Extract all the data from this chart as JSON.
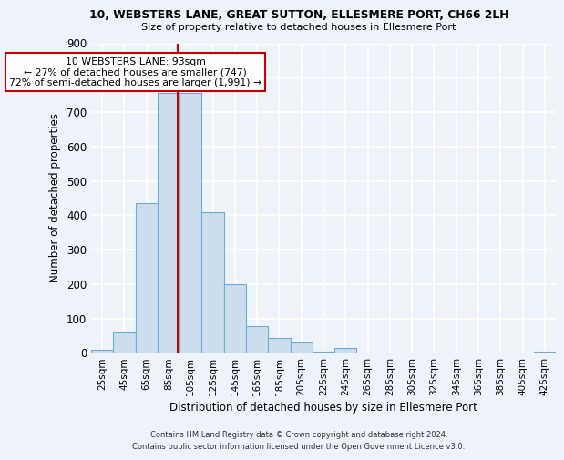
{
  "title": "10, WEBSTERS LANE, GREAT SUTTON, ELLESMERE PORT, CH66 2LH",
  "subtitle": "Size of property relative to detached houses in Ellesmere Port",
  "xlabel": "Distribution of detached houses by size in Ellesmere Port",
  "ylabel": "Number of detached properties",
  "bar_color": "#ccdded",
  "bar_edge_color": "#6aaed6",
  "bin_labels": [
    "25sqm",
    "45sqm",
    "65sqm",
    "85sqm",
    "105sqm",
    "125sqm",
    "145sqm",
    "165sqm",
    "185sqm",
    "205sqm",
    "225sqm",
    "245sqm",
    "265sqm",
    "285sqm",
    "305sqm",
    "325sqm",
    "345sqm",
    "365sqm",
    "385sqm",
    "405sqm",
    "425sqm"
  ],
  "counts": [
    10,
    60,
    435,
    755,
    755,
    410,
    200,
    78,
    45,
    30,
    5,
    15,
    0,
    0,
    0,
    0,
    0,
    0,
    0,
    0,
    5
  ],
  "vline_x": 3,
  "vline_color": "#cc0000",
  "annotation_text": "10 WEBSTERS LANE: 93sqm\n← 27% of detached houses are smaller (747)\n72% of semi-detached houses are larger (1,991) →",
  "annotation_box_color": "#ffffff",
  "annotation_box_edge": "#cc0000",
  "ylim": [
    0,
    900
  ],
  "yticks": [
    0,
    100,
    200,
    300,
    400,
    500,
    600,
    700,
    800,
    900
  ],
  "footer_line1": "Contains HM Land Registry data © Crown copyright and database right 2024.",
  "footer_line2": "Contains public sector information licensed under the Open Government Licence v3.0.",
  "bg_color": "#eef2f9",
  "grid_color": "#ffffff"
}
